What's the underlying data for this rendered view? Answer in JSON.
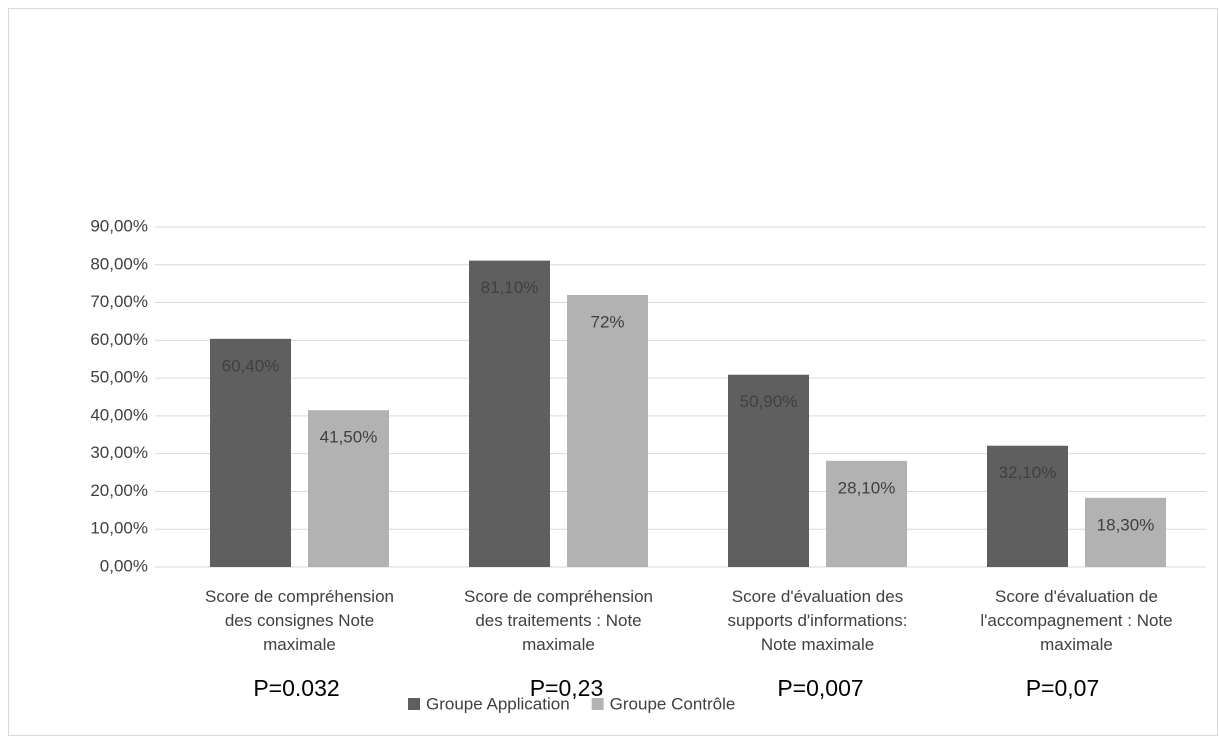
{
  "chart_data": {
    "type": "bar",
    "categories": [
      "Score de compréhension des consignes Note maximale",
      "Score de compréhension des traitements : Note maximale",
      "Score d'évaluation des supports d'informations: Note maximale",
      "Score d'évaluation de l'accompagnement : Note maximale"
    ],
    "series": [
      {
        "name": "Groupe Application",
        "color": "#5f5f5f",
        "values": [
          60.4,
          81.1,
          50.9,
          32.1
        ],
        "value_labels": [
          "60,40%",
          "81,10%",
          "50,90%",
          "32,10%"
        ]
      },
      {
        "name": "Groupe Contrôle",
        "color": "#b2b2b2",
        "values": [
          41.5,
          72,
          28.1,
          18.3
        ],
        "value_labels": [
          "41,50%",
          "72%",
          "28,10%",
          "18,30%"
        ]
      }
    ],
    "annotations": [
      "P=0.032",
      "P=0,23",
      "P=0,007",
      "P=0,07"
    ],
    "ylim": [
      0,
      90
    ],
    "yticks": [
      {
        "value": 0,
        "label": "0,00%"
      },
      {
        "value": 10,
        "label": "10,00%"
      },
      {
        "value": 20,
        "label": "20,00%"
      },
      {
        "value": 30,
        "label": "30,00%"
      },
      {
        "value": 40,
        "label": "40,00%"
      },
      {
        "value": 50,
        "label": "50,00%"
      },
      {
        "value": 60,
        "label": "60,00%"
      },
      {
        "value": 70,
        "label": "70,00%"
      },
      {
        "value": 80,
        "label": "80,00%"
      },
      {
        "value": 90,
        "label": "90,00%"
      }
    ],
    "grid": true,
    "legend": "bottom"
  }
}
